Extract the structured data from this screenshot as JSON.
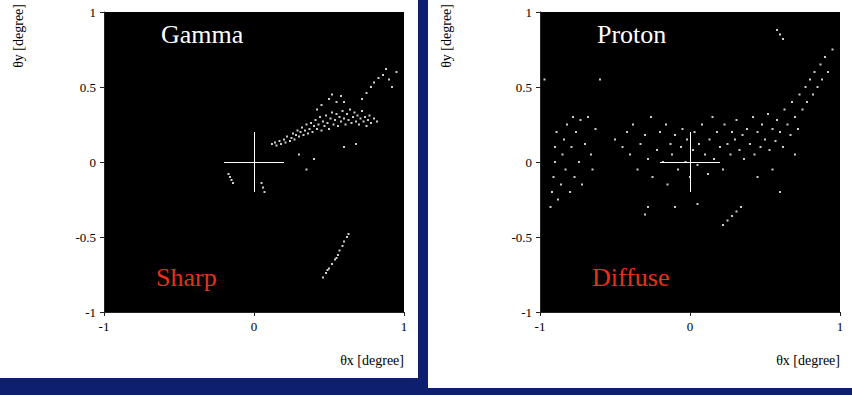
{
  "chart_data": [
    {
      "type": "scatter",
      "title": "Gamma",
      "annotations": [
        "Sharp"
      ],
      "x_label": "θx [degree]",
      "y_label": "θy [degree]",
      "xlim": [
        -1,
        1
      ],
      "ylim": [
        -1,
        1
      ],
      "xticks": [
        -1,
        0,
        1
      ],
      "yticks": [
        -1,
        -0.5,
        0,
        0.5,
        1
      ],
      "grid": false,
      "color": "#ffffff",
      "cross": [
        [
          [
            -0.2,
            0
          ],
          [
            0.2,
            0
          ]
        ],
        [
          [
            0,
            -0.2
          ],
          [
            0,
            0.2
          ]
        ]
      ],
      "points": [
        [
          0.12,
          0.12
        ],
        [
          0.14,
          0.13
        ],
        [
          0.15,
          0.11
        ],
        [
          0.17,
          0.14
        ],
        [
          0.18,
          0.12
        ],
        [
          0.2,
          0.15
        ],
        [
          0.21,
          0.13
        ],
        [
          0.22,
          0.17
        ],
        [
          0.24,
          0.14
        ],
        [
          0.25,
          0.16
        ],
        [
          0.26,
          0.19
        ],
        [
          0.27,
          0.15
        ],
        [
          0.28,
          0.18
        ],
        [
          0.29,
          0.21
        ],
        [
          0.3,
          0.17
        ],
        [
          0.31,
          0.2
        ],
        [
          0.32,
          0.23
        ],
        [
          0.33,
          0.18
        ],
        [
          0.34,
          0.21
        ],
        [
          0.35,
          0.25
        ],
        [
          0.36,
          0.19
        ],
        [
          0.37,
          0.22
        ],
        [
          0.38,
          0.26
        ],
        [
          0.39,
          0.2
        ],
        [
          0.4,
          0.24
        ],
        [
          0.41,
          0.28
        ],
        [
          0.42,
          0.22
        ],
        [
          0.43,
          0.25
        ],
        [
          0.44,
          0.3
        ],
        [
          0.45,
          0.21
        ],
        [
          0.46,
          0.27
        ],
        [
          0.47,
          0.24
        ],
        [
          0.48,
          0.31
        ],
        [
          0.49,
          0.26
        ],
        [
          0.5,
          0.22
        ],
        [
          0.51,
          0.29
        ],
        [
          0.52,
          0.33
        ],
        [
          0.53,
          0.25
        ],
        [
          0.54,
          0.28
        ],
        [
          0.55,
          0.32
        ],
        [
          0.56,
          0.24
        ],
        [
          0.57,
          0.3
        ],
        [
          0.58,
          0.27
        ],
        [
          0.59,
          0.34
        ],
        [
          0.6,
          0.29
        ],
        [
          0.61,
          0.25
        ],
        [
          0.62,
          0.32
        ],
        [
          0.63,
          0.28
        ],
        [
          0.64,
          0.35
        ],
        [
          0.65,
          0.26
        ],
        [
          0.66,
          0.3
        ],
        [
          0.67,
          0.33
        ],
        [
          0.68,
          0.27
        ],
        [
          0.69,
          0.31
        ],
        [
          0.7,
          0.25
        ],
        [
          0.71,
          0.29
        ],
        [
          0.72,
          0.34
        ],
        [
          0.73,
          0.27
        ],
        [
          0.74,
          0.3
        ],
        [
          0.75,
          0.24
        ],
        [
          0.76,
          0.28
        ],
        [
          0.77,
          0.31
        ],
        [
          0.78,
          0.26
        ],
        [
          0.8,
          0.29
        ],
        [
          0.82,
          0.27
        ],
        [
          0.5,
          0.42
        ],
        [
          0.52,
          0.45
        ],
        [
          0.55,
          0.4
        ],
        [
          0.58,
          0.44
        ],
        [
          0.45,
          0.38
        ],
        [
          0.6,
          0.4
        ],
        [
          0.42,
          0.35
        ],
        [
          0.72,
          0.42
        ],
        [
          0.75,
          0.46
        ],
        [
          0.78,
          0.5
        ],
        [
          0.8,
          0.53
        ],
        [
          0.83,
          0.56
        ],
        [
          0.86,
          0.58
        ],
        [
          0.88,
          0.62
        ],
        [
          0.9,
          0.55
        ],
        [
          0.92,
          0.5
        ],
        [
          0.95,
          0.6
        ],
        [
          -0.17,
          -0.08
        ],
        [
          -0.16,
          -0.1
        ],
        [
          -0.15,
          -0.12
        ],
        [
          -0.14,
          -0.14
        ],
        [
          0.05,
          -0.14
        ],
        [
          0.06,
          -0.17
        ],
        [
          0.07,
          -0.2
        ],
        [
          0.3,
          0.05
        ],
        [
          0.4,
          0.02
        ],
        [
          0.6,
          0.1
        ],
        [
          0.35,
          -0.05
        ],
        [
          0.68,
          0.12
        ],
        [
          0.46,
          -0.77
        ],
        [
          0.48,
          -0.74
        ],
        [
          0.5,
          -0.71
        ],
        [
          0.52,
          -0.68
        ],
        [
          0.54,
          -0.65
        ],
        [
          0.56,
          -0.62
        ],
        [
          0.57,
          -0.59
        ],
        [
          0.59,
          -0.56
        ],
        [
          0.6,
          -0.53
        ],
        [
          0.62,
          -0.5
        ],
        [
          0.63,
          -0.48
        ],
        [
          0.49,
          -0.72
        ],
        [
          0.55,
          -0.64
        ]
      ]
    },
    {
      "type": "scatter",
      "title": "Proton",
      "annotations": [
        "Diffuse"
      ],
      "x_label": "θx [degree]",
      "y_label": "θy [degree]",
      "xlim": [
        -1,
        1
      ],
      "ylim": [
        -1,
        1
      ],
      "xticks": [
        -1,
        0,
        1
      ],
      "yticks": [
        -1,
        -0.5,
        0,
        0.5,
        1
      ],
      "grid": false,
      "color": "#ffffff",
      "cross": [
        [
          [
            -0.2,
            0
          ],
          [
            0.2,
            0
          ]
        ],
        [
          [
            0,
            -0.2
          ],
          [
            0,
            0.2
          ]
        ]
      ],
      "points": [
        [
          -0.93,
          -0.3
        ],
        [
          -0.92,
          -0.2
        ],
        [
          -0.91,
          -0.1
        ],
        [
          -0.9,
          0.0
        ],
        [
          -0.9,
          0.1
        ],
        [
          -0.89,
          0.2
        ],
        [
          -0.88,
          -0.25
        ],
        [
          -0.86,
          -0.15
        ],
        [
          -0.85,
          0.05
        ],
        [
          -0.84,
          0.15
        ],
        [
          -0.83,
          -0.05
        ],
        [
          -0.82,
          0.25
        ],
        [
          -0.8,
          -0.2
        ],
        [
          -0.79,
          0.1
        ],
        [
          -0.78,
          0.3
        ],
        [
          -0.77,
          -0.1
        ],
        [
          -0.76,
          0.2
        ],
        [
          -0.74,
          0.0
        ],
        [
          -0.73,
          0.28
        ],
        [
          -0.72,
          -0.15
        ],
        [
          -0.7,
          0.12
        ],
        [
          -0.68,
          0.3
        ],
        [
          -0.66,
          0.05
        ],
        [
          -0.65,
          -0.05
        ],
        [
          -0.63,
          0.22
        ],
        [
          -0.6,
          0.55
        ],
        [
          -0.97,
          0.55
        ],
        [
          -0.5,
          0.15
        ],
        [
          -0.45,
          0.1
        ],
        [
          -0.42,
          0.2
        ],
        [
          -0.4,
          0.05
        ],
        [
          -0.38,
          0.25
        ],
        [
          -0.35,
          -0.05
        ],
        [
          -0.33,
          0.12
        ],
        [
          -0.3,
          0.18
        ],
        [
          -0.28,
          0.02
        ],
        [
          -0.26,
          0.3
        ],
        [
          -0.25,
          -0.1
        ],
        [
          -0.22,
          0.08
        ],
        [
          -0.2,
          0.2
        ],
        [
          -0.18,
          0.0
        ],
        [
          -0.16,
          0.25
        ],
        [
          -0.15,
          -0.15
        ],
        [
          -0.13,
          0.12
        ],
        [
          -0.12,
          0.05
        ],
        [
          -0.1,
          0.18
        ],
        [
          -0.08,
          -0.05
        ],
        [
          -0.06,
          0.1
        ],
        [
          -0.05,
          0.22
        ],
        [
          -0.03,
          0.0
        ],
        [
          -0.02,
          0.15
        ],
        [
          0.0,
          -0.1
        ],
        [
          0.02,
          0.08
        ],
        [
          0.03,
          0.2
        ],
        [
          0.05,
          -0.02
        ],
        [
          0.06,
          0.12
        ],
        [
          0.08,
          0.25
        ],
        [
          0.1,
          0.05
        ],
        [
          0.12,
          -0.08
        ],
        [
          0.13,
          0.15
        ],
        [
          0.15,
          0.3
        ],
        [
          0.16,
          0.02
        ],
        [
          0.18,
          0.2
        ],
        [
          0.2,
          0.1
        ],
        [
          0.22,
          -0.05
        ],
        [
          0.23,
          0.25
        ],
        [
          0.25,
          0.12
        ],
        [
          0.27,
          0.05
        ],
        [
          0.28,
          0.2
        ],
        [
          0.3,
          0.15
        ],
        [
          0.31,
          0.28
        ],
        [
          0.33,
          0.08
        ],
        [
          0.35,
          0.18
        ],
        [
          0.36,
          0.02
        ],
        [
          0.38,
          0.22
        ],
        [
          0.4,
          0.12
        ],
        [
          0.42,
          0.3
        ],
        [
          0.43,
          0.05
        ],
        [
          0.45,
          0.2
        ],
        [
          0.47,
          0.1
        ],
        [
          0.48,
          0.25
        ],
        [
          0.5,
          0.15
        ],
        [
          0.52,
          0.32
        ],
        [
          0.53,
          0.08
        ],
        [
          0.55,
          0.22
        ],
        [
          0.57,
          0.14
        ],
        [
          0.58,
          0.28
        ],
        [
          0.6,
          0.2
        ],
        [
          0.62,
          0.1
        ],
        [
          0.63,
          0.35
        ],
        [
          0.65,
          0.25
        ],
        [
          0.67,
          0.18
        ],
        [
          0.68,
          0.4
        ],
        [
          0.7,
          0.3
        ],
        [
          0.72,
          0.22
        ],
        [
          0.73,
          0.45
        ],
        [
          0.75,
          0.35
        ],
        [
          0.77,
          0.5
        ],
        [
          0.78,
          0.4
        ],
        [
          0.8,
          0.55
        ],
        [
          0.82,
          0.45
        ],
        [
          0.83,
          0.6
        ],
        [
          0.85,
          0.5
        ],
        [
          0.87,
          0.65
        ],
        [
          0.88,
          0.55
        ],
        [
          0.9,
          0.7
        ],
        [
          0.92,
          0.6
        ],
        [
          0.95,
          0.75
        ],
        [
          -0.3,
          -0.35
        ],
        [
          -0.28,
          -0.3
        ],
        [
          -0.1,
          -0.3
        ],
        [
          0.05,
          -0.28
        ],
        [
          0.22,
          -0.42
        ],
        [
          0.25,
          -0.39
        ],
        [
          0.28,
          -0.36
        ],
        [
          0.31,
          -0.33
        ],
        [
          0.34,
          -0.3
        ],
        [
          0.45,
          -0.1
        ],
        [
          0.55,
          -0.05
        ],
        [
          0.6,
          -0.2
        ],
        [
          0.7,
          0.05
        ],
        [
          0.58,
          0.88
        ],
        [
          0.6,
          0.85
        ],
        [
          0.62,
          0.82
        ]
      ]
    }
  ]
}
